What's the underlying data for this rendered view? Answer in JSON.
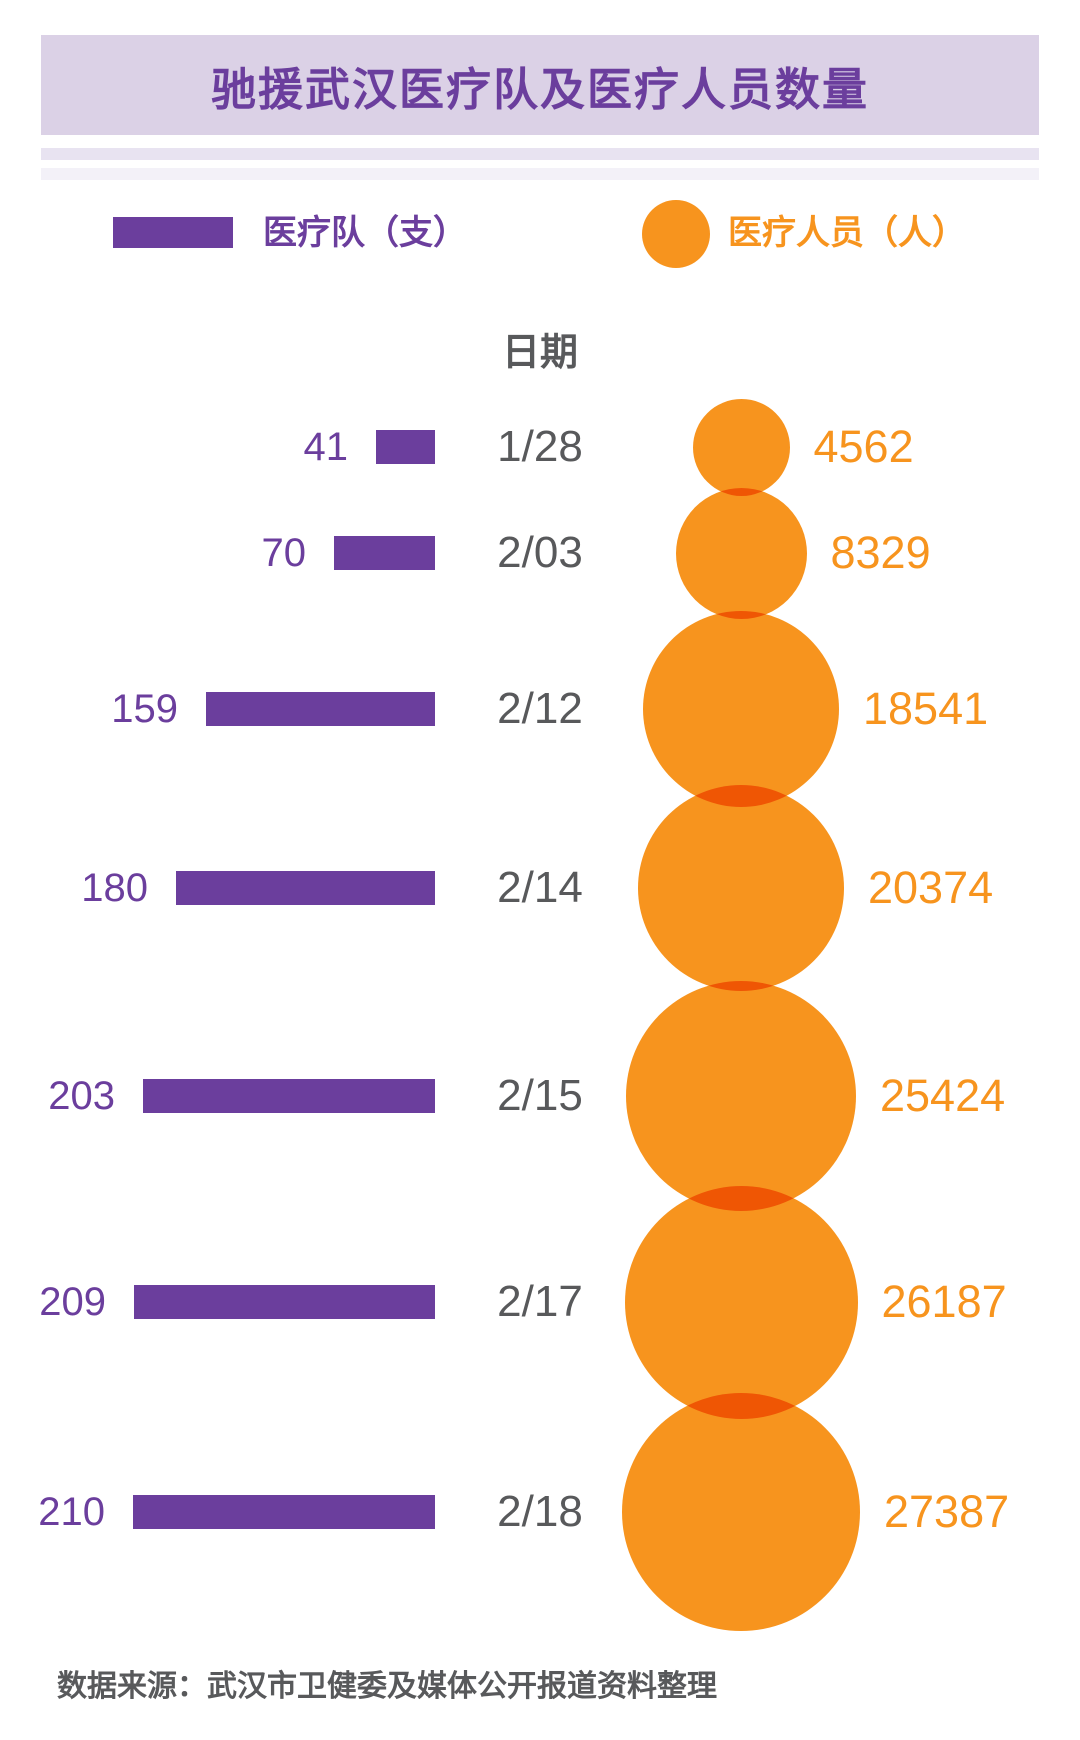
{
  "title": "驰援武汉医疗队及医疗人员数量",
  "legend": {
    "teams_label": "医疗队（支）",
    "personnel_label": "医疗人员（人）"
  },
  "columns": {
    "date_header": "日期"
  },
  "source_note": "数据来源：武汉市卫健委及媒体公开报道资料整理",
  "colors": {
    "purple": "#6B3E9D",
    "orange": "#F7941E",
    "title_band_bg": "#DBD1E6",
    "stripe_dark": "#E8E3F1",
    "stripe_light": "#F3F1F8",
    "text_gray": "#58595B",
    "background": "#FFFFFF"
  },
  "chart_data": {
    "type": "bar",
    "title": "驰援武汉医疗队及医疗人员数量",
    "xlabel": "日期",
    "categories": [
      "1/28",
      "2/03",
      "2/12",
      "2/14",
      "2/15",
      "2/17",
      "2/18"
    ],
    "series": [
      {
        "name": "医疗队（支）",
        "unit": "支",
        "color": "#6B3E9D",
        "rendered_as": "horizontal-bars-right-aligned",
        "values": [
          41,
          70,
          159,
          180,
          203,
          209,
          210
        ]
      },
      {
        "name": "医疗人员（人）",
        "unit": "人",
        "color": "#F7941E",
        "rendered_as": "area-proportional-circles-stacked-with-overlap",
        "values": [
          4562,
          8329,
          18541,
          20374,
          25424,
          26187,
          27387
        ]
      }
    ],
    "legend_position": "top",
    "grid": false,
    "source": "数据来源：武汉市卫健委及媒体公开报道资料整理"
  }
}
